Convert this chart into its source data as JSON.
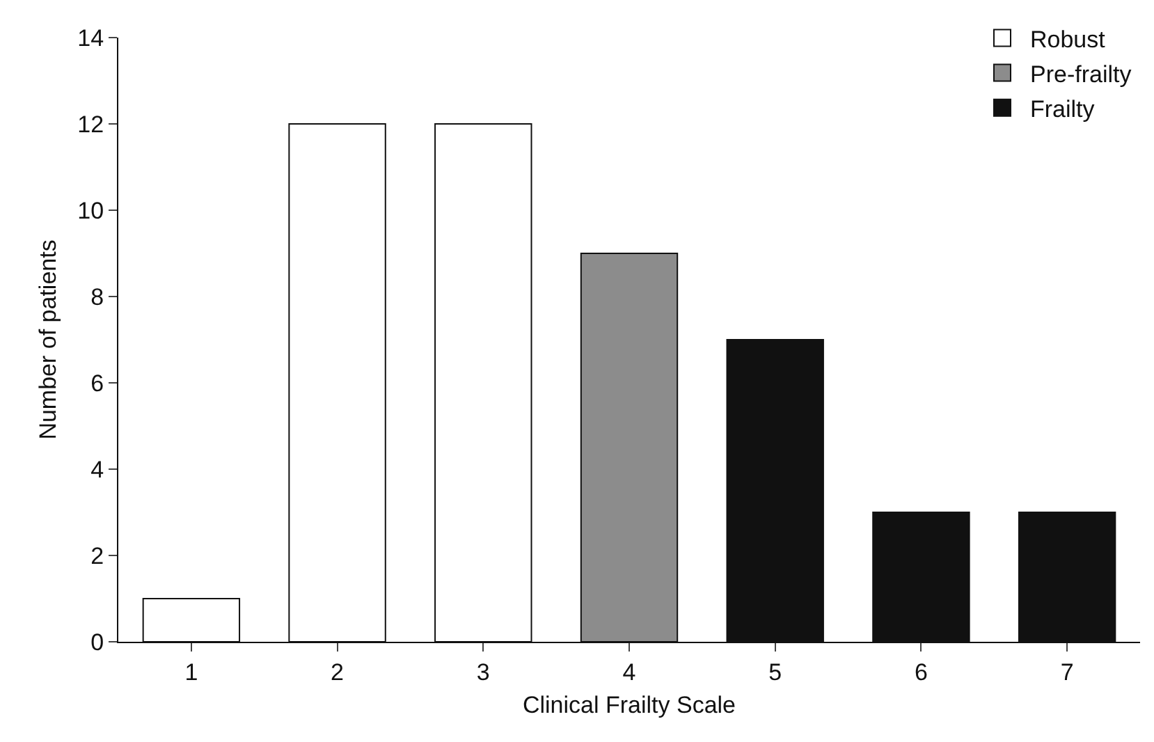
{
  "chart_data": {
    "type": "bar",
    "xlabel": "Clinical Frailty Scale",
    "ylabel": "Number of patients",
    "categories": [
      "1",
      "2",
      "3",
      "4",
      "5",
      "6",
      "7"
    ],
    "series": [
      {
        "name": "Robust",
        "color": "#ffffff",
        "values": [
          1,
          12,
          12,
          null,
          null,
          null,
          null
        ]
      },
      {
        "name": "Pre-frailty",
        "color": "#8c8c8c",
        "values": [
          null,
          null,
          null,
          9,
          null,
          null,
          null
        ]
      },
      {
        "name": "Frailty",
        "color": "#111111",
        "values": [
          null,
          null,
          null,
          null,
          7,
          3,
          3
        ]
      }
    ],
    "ylim": [
      0,
      14
    ],
    "yticks": [
      0,
      2,
      4,
      6,
      8,
      10,
      12,
      14
    ],
    "grid": false,
    "legend": "top right"
  }
}
